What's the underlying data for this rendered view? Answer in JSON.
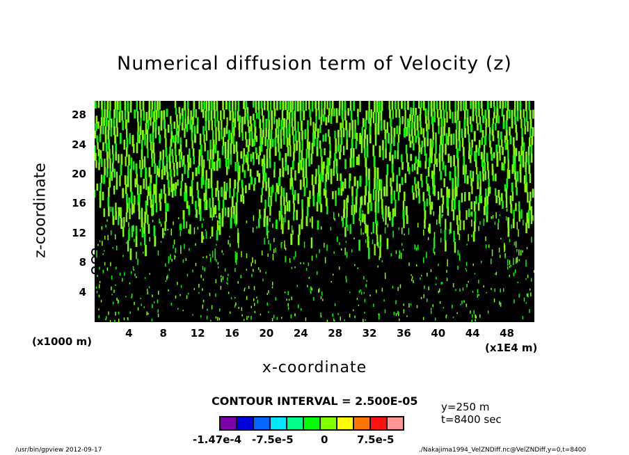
{
  "chart_data": {
    "type": "heatmap",
    "title": "Numerical diffusion term of Velocity (z)",
    "xlabel": "x-coordinate",
    "ylabel": "z-coordinate",
    "x_unit_left": "(x1000 m)",
    "x_unit_right": "(x1E4 m)",
    "xlim": [
      0,
      51.2
    ],
    "ylim": [
      0,
      30
    ],
    "x_ticks": [
      "4",
      "8",
      "12",
      "16",
      "20",
      "24",
      "28",
      "32",
      "36",
      "40",
      "44",
      "48"
    ],
    "x_tick_values": [
      4,
      8,
      12,
      16,
      20,
      24,
      28,
      32,
      36,
      40,
      44,
      48
    ],
    "y_ticks": [
      "4",
      "8",
      "12",
      "16",
      "20",
      "24",
      "28"
    ],
    "y_tick_values": [
      4,
      8,
      12,
      16,
      20,
      24,
      28
    ],
    "contour_interval": "CONTOUR INTERVAL = 2.500E-05",
    "colorbar": {
      "colors": [
        "#7f00aa",
        "#0000dd",
        "#0066ff",
        "#00e6ff",
        "#00ff88",
        "#00ff00",
        "#80ff00",
        "#ffff00",
        "#ff7700",
        "#ff1111",
        "#ff9999"
      ],
      "labels": [
        "-1.47e-4",
        "-7.5e-5",
        "0",
        "7.5e-5"
      ]
    },
    "field_colors": {
      "background": "#000000",
      "neg_small": "#00ff00",
      "pos_small": "#80ff00"
    },
    "annotations": [
      "y=250 m",
      "t=8400 sec"
    ]
  },
  "footer": {
    "left": "/usr/bin/gpview   2012-09-17",
    "right": "./Nakajima1994_VelZNDiff.nc@VelZNDiff,y=0,t=8400"
  }
}
